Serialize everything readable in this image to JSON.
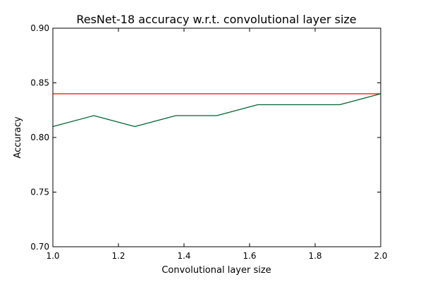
{
  "chart_data": {
    "type": "line",
    "title": "ResNet-18 accuracy w.r.t. convolutional layer size",
    "xlabel": "Convolutional layer size",
    "ylabel": "Accuracy",
    "xlim": [
      1.0,
      2.0
    ],
    "ylim": [
      0.7,
      0.9
    ],
    "x_ticks": [
      "1.0",
      "1.2",
      "1.4",
      "1.6",
      "1.8",
      "2.0"
    ],
    "y_ticks": [
      "0.70",
      "0.75",
      "0.80",
      "0.85",
      "0.90"
    ],
    "grid": false,
    "legend": "none",
    "series": [
      {
        "color": "#006633",
        "x": [
          1.0,
          1.125,
          1.25,
          1.375,
          1.5,
          1.625,
          1.75,
          1.875,
          2.0
        ],
        "y": [
          0.81,
          0.82,
          0.81,
          0.82,
          0.82,
          0.83,
          0.83,
          0.83,
          0.84
        ]
      },
      {
        "color": "#ff0000",
        "x": [
          1.0,
          2.0
        ],
        "y": [
          0.84,
          0.84
        ]
      }
    ]
  }
}
